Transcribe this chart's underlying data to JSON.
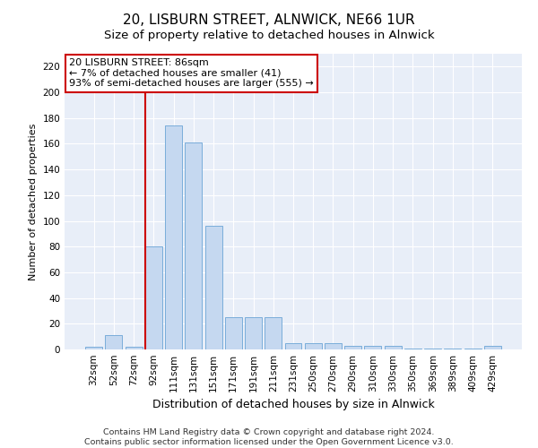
{
  "title": "20, LISBURN STREET, ALNWICK, NE66 1UR",
  "subtitle": "Size of property relative to detached houses in Alnwick",
  "xlabel": "Distribution of detached houses by size in Alnwick",
  "ylabel": "Number of detached properties",
  "categories": [
    "32sqm",
    "52sqm",
    "72sqm",
    "92sqm",
    "111sqm",
    "131sqm",
    "151sqm",
    "171sqm",
    "191sqm",
    "211sqm",
    "231sqm",
    "250sqm",
    "270sqm",
    "290sqm",
    "310sqm",
    "330sqm",
    "350sqm",
    "369sqm",
    "389sqm",
    "409sqm",
    "429sqm"
  ],
  "values": [
    2,
    11,
    2,
    80,
    174,
    161,
    96,
    25,
    25,
    25,
    5,
    5,
    5,
    3,
    3,
    3,
    1,
    1,
    1,
    1,
    3
  ],
  "bar_color": "#c5d8f0",
  "bar_edge_color": "#7aadda",
  "annotation_text": "20 LISBURN STREET: 86sqm\n← 7% of detached houses are smaller (41)\n93% of semi-detached houses are larger (555) →",
  "annotation_box_color": "#ffffff",
  "annotation_box_edge_color": "#cc0000",
  "property_line_color": "#cc0000",
  "property_line_x": 2.575,
  "ylim": [
    0,
    230
  ],
  "yticks": [
    0,
    20,
    40,
    60,
    80,
    100,
    120,
    140,
    160,
    180,
    200,
    220
  ],
  "background_color": "#ffffff",
  "plot_bg_color": "#e8eef8",
  "grid_color": "#ffffff",
  "footer_line1": "Contains HM Land Registry data © Crown copyright and database right 2024.",
  "footer_line2": "Contains public sector information licensed under the Open Government Licence v3.0.",
  "title_fontsize": 11,
  "subtitle_fontsize": 9.5,
  "xlabel_fontsize": 9,
  "ylabel_fontsize": 8,
  "tick_fontsize": 7.5,
  "footer_fontsize": 6.8,
  "annotation_fontsize": 8
}
